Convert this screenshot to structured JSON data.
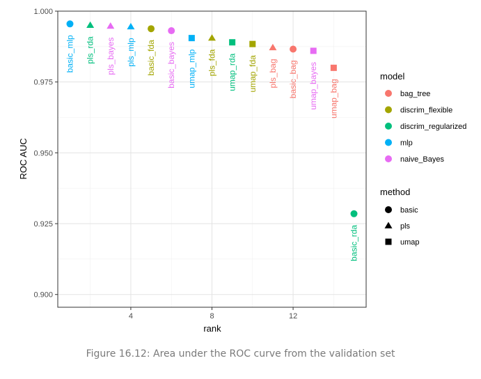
{
  "caption": "Figure 16.12: Area under the ROC curve from the validation set",
  "chart_data": {
    "type": "scatter",
    "xlabel": "rank",
    "ylabel": "ROC AUC",
    "xlim": [
      0.4,
      15.6
    ],
    "ylim": [
      0.8955,
      1.0
    ],
    "x_ticks": [
      4,
      8,
      12
    ],
    "y_ticks": [
      0.9,
      0.925,
      0.95,
      0.975,
      1.0
    ],
    "y_tick_labels": [
      "0.900",
      "0.925",
      "0.950",
      "0.975",
      "1.000"
    ],
    "grid": true,
    "legend_position": "right",
    "colors": {
      "bag_tree": "#F8766D",
      "discrim_flexible": "#A3A500",
      "discrim_regularized": "#00BF7D",
      "mlp": "#00B0F6",
      "naive_Bayes": "#E76BF3"
    },
    "legend": {
      "model_title": "model",
      "models": [
        "bag_tree",
        "discrim_flexible",
        "discrim_regularized",
        "mlp",
        "naive_Bayes"
      ],
      "method_title": "method",
      "methods": [
        "basic",
        "pls",
        "umap"
      ],
      "method_shapes": {
        "basic": "circle",
        "pls": "triangle",
        "umap": "square"
      }
    },
    "points": [
      {
        "label": "basic_mlp",
        "rank": 1,
        "auc": 0.9955,
        "model": "mlp",
        "method": "basic"
      },
      {
        "label": "pls_rda",
        "rank": 2,
        "auc": 0.995,
        "model": "discrim_regularized",
        "method": "pls"
      },
      {
        "label": "pls_bayes",
        "rank": 3,
        "auc": 0.9947,
        "model": "naive_Bayes",
        "method": "pls"
      },
      {
        "label": "pls_mlp",
        "rank": 4,
        "auc": 0.9945,
        "model": "mlp",
        "method": "pls"
      },
      {
        "label": "basic_fda",
        "rank": 5,
        "auc": 0.9938,
        "model": "discrim_flexible",
        "method": "basic"
      },
      {
        "label": "basic_bayes",
        "rank": 6,
        "auc": 0.9931,
        "model": "naive_Bayes",
        "method": "basic"
      },
      {
        "label": "umap_mlp",
        "rank": 7,
        "auc": 0.9905,
        "model": "mlp",
        "method": "umap"
      },
      {
        "label": "pls_fda",
        "rank": 8,
        "auc": 0.9905,
        "model": "discrim_flexible",
        "method": "pls"
      },
      {
        "label": "umap_rda",
        "rank": 9,
        "auc": 0.989,
        "model": "discrim_regularized",
        "method": "umap"
      },
      {
        "label": "umap_fda",
        "rank": 10,
        "auc": 0.9884,
        "model": "discrim_flexible",
        "method": "umap"
      },
      {
        "label": "pls_bag",
        "rank": 11,
        "auc": 0.9871,
        "model": "bag_tree",
        "method": "pls"
      },
      {
        "label": "basic_bag",
        "rank": 12,
        "auc": 0.9866,
        "model": "bag_tree",
        "method": "basic"
      },
      {
        "label": "umap_bayes",
        "rank": 13,
        "auc": 0.986,
        "model": "naive_Bayes",
        "method": "umap"
      },
      {
        "label": "umap_bag",
        "rank": 14,
        "auc": 0.98,
        "model": "bag_tree",
        "method": "umap"
      },
      {
        "label": "basic_rda",
        "rank": 15,
        "auc": 0.9285,
        "model": "discrim_regularized",
        "method": "basic"
      }
    ]
  }
}
